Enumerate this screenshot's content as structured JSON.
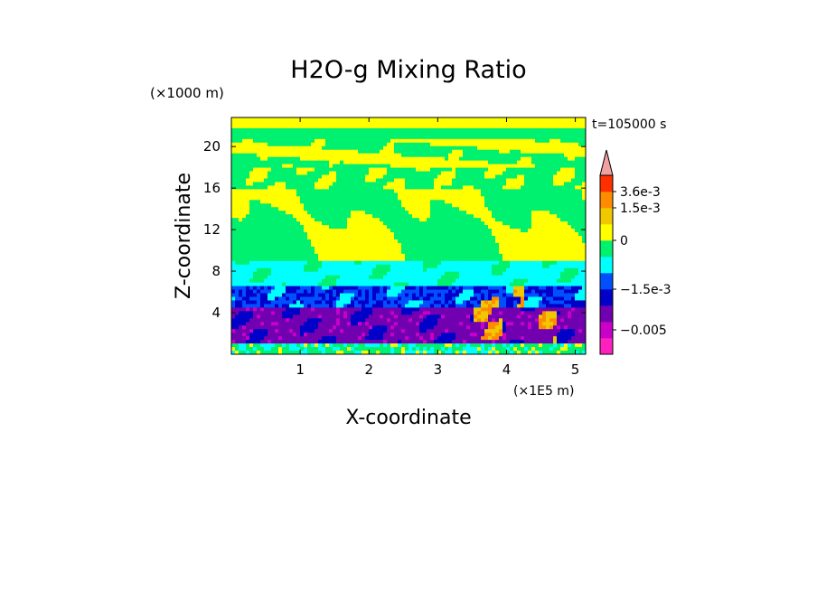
{
  "chart_data": {
    "type": "heatmap",
    "title": "H2O-g Mixing Ratio",
    "xlabel": "X-coordinate",
    "ylabel": "Z-coordinate",
    "x_unit": "(×1E5 m)",
    "y_unit": "(×1000 m)",
    "time_label": "t=105000 s",
    "xlim": [
      0,
      5.15
    ],
    "ylim": [
      0,
      22.8
    ],
    "x_ticks": [
      1,
      2,
      3,
      4,
      5
    ],
    "y_ticks": [
      4,
      8,
      12,
      16,
      20
    ],
    "colorbar": {
      "colors": [
        "#ff20c0",
        "#c800c8",
        "#7000b0",
        "#0000c8",
        "#0050ff",
        "#00ffff",
        "#00f070",
        "#ffff00",
        "#f0c800",
        "#ff8c00",
        "#ff3000",
        "#f0a0a0"
      ],
      "labels": [
        {
          "text": "3.6e-3",
          "value": 0.0036
        },
        {
          "text": "1.5e-3",
          "value": 0.0015
        },
        {
          "text": "0",
          "value": 0
        },
        {
          "text": "−1.5e-3",
          "value": -0.0015
        },
        {
          "text": "−0.005",
          "value": -0.005
        }
      ],
      "extend": "max"
    },
    "grid": false
  }
}
